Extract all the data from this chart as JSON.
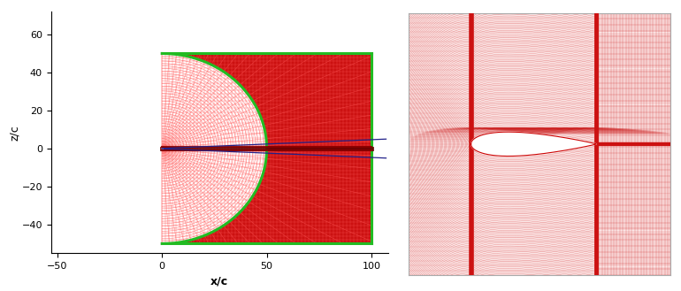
{
  "fig_width": 7.7,
  "fig_height": 3.29,
  "dpi": 100,
  "left_xlim": [
    -53,
    108
  ],
  "left_ylim": [
    -55,
    72
  ],
  "xlabel": "x/c",
  "ylabel": "z/c",
  "xticks": [
    -50,
    0,
    50,
    100
  ],
  "yticks": [
    -40,
    -20,
    0,
    20,
    40,
    60
  ],
  "mesh_red": "#cc1111",
  "mesh_red_light": "#dd4444",
  "domain_green": "#22bb22",
  "wake_blue": "#22228a",
  "bg_white": "#ffffff",
  "right_bg": "#fceaea",
  "R": 50,
  "x_rect_end": 100,
  "n_radial": 45,
  "n_arcs": 38,
  "n_xgrid": 60,
  "n_zgrid": 52
}
